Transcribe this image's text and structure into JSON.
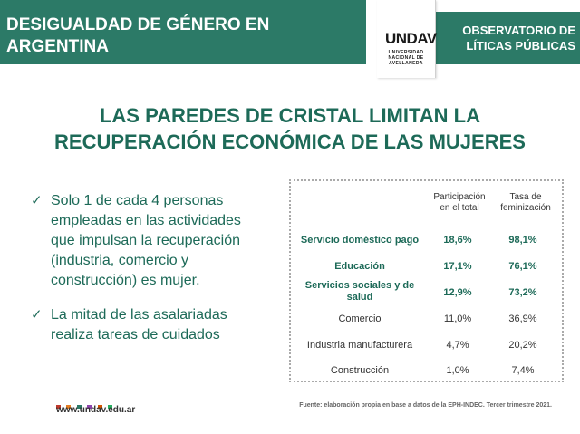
{
  "header": {
    "left_title": "DESIGUALDAD DE GÉNERO EN ARGENTINA",
    "right_title_line1": "OBSERVATORIO DE",
    "right_title_line2": "LÍTICAS PÚBLICAS",
    "logo_mark": "UNDAV",
    "logo_sub": "UNIVERSIDAD\nNACIONAL DE\nAVELLANEDA"
  },
  "main_title_line1": "LAS PAREDES DE CRISTAL LIMITAN LA",
  "main_title_line2": "RECUPERACIÓN ECONÓMICA DE LAS MUJERES",
  "bullets": [
    "Solo 1 de cada 4 personas empleadas en las actividades que impulsan la recuperación (industria, comercio y construcción) es mujer.",
    "La mitad de las asalariadas realiza tareas de cuidados"
  ],
  "table": {
    "col1_header": "Participación en el total",
    "col2_header": "Tasa de feminización",
    "rows": [
      {
        "label": "Servicio doméstico pago",
        "participacion": "18,6%",
        "feminizacion": "98,1%"
      },
      {
        "label": "Educación",
        "participacion": "17,1%",
        "feminizacion": "76,1%"
      },
      {
        "label": "Servicios sociales y de salud",
        "participacion": "12,9%",
        "feminizacion": "73,2%"
      },
      {
        "label": "Comercio",
        "participacion": "11,0%",
        "feminizacion": "36,9%"
      },
      {
        "label": "Industria manufacturera",
        "participacion": "4,7%",
        "feminizacion": "20,2%"
      },
      {
        "label": "Construcción",
        "participacion": "1,0%",
        "feminizacion": "7,4%"
      }
    ]
  },
  "footer": {
    "url": "www.undav.edu.ar",
    "source": "Fuente: elaboración propia en base a datos de la EPH-INDEC. Tercer trimestre 2021.",
    "dot_colors": [
      "#c0392b",
      "#e67e22",
      "#2c7a67",
      "#8e44ad",
      "#d35400",
      "#27ae60"
    ]
  }
}
